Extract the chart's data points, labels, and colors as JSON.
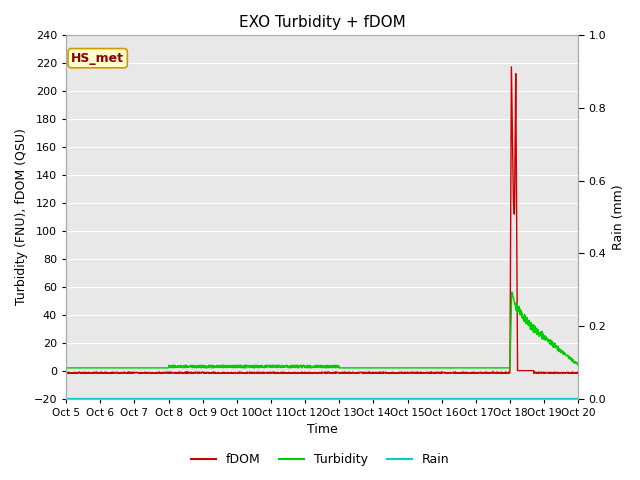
{
  "title": "EXO Turbidity + fDOM",
  "xlabel": "Time",
  "ylabel_left": "Turbidity (FNU), fDOM (QSU)",
  "ylabel_right": "Rain (mm)",
  "ylim_left": [
    -20,
    240
  ],
  "ylim_right": [
    0.0,
    1.0
  ],
  "yticks_left": [
    -20,
    0,
    20,
    40,
    60,
    80,
    100,
    120,
    140,
    160,
    180,
    200,
    220,
    240
  ],
  "yticks_right": [
    0.0,
    0.2,
    0.4,
    0.6,
    0.8,
    1.0
  ],
  "background_color": "#e8e8e8",
  "fdom_color": "#cc0000",
  "turb_color": "#00cc00",
  "rain_color": "#00cccc",
  "annotation_label": "HS_met",
  "annotation_bg": "#ffffcc",
  "annotation_border": "#cc9900",
  "figsize": [
    6.4,
    4.8
  ],
  "dpi": 100
}
